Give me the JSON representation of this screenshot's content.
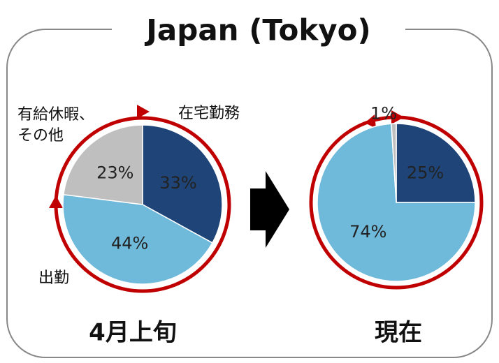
{
  "title": "Japan (Tokyo)",
  "chart_data": [
    {
      "type": "pie",
      "title": "4月上旬",
      "categories": [
        "在宅勤務",
        "出勤",
        "有給休暇、その他"
      ],
      "values": [
        33,
        44,
        23
      ],
      "value_labels": [
        "33%",
        "44%",
        "23%"
      ],
      "colors": [
        "#1f4478",
        "#6fb9db",
        "#bfbfbf"
      ]
    },
    {
      "type": "pie",
      "title": "現在",
      "values": [
        25,
        74,
        1
      ],
      "value_labels": [
        "25%",
        "74%",
        "1%"
      ],
      "colors": [
        "#1f4478",
        "#6fb9db",
        "#bfbfbf"
      ]
    }
  ]
}
